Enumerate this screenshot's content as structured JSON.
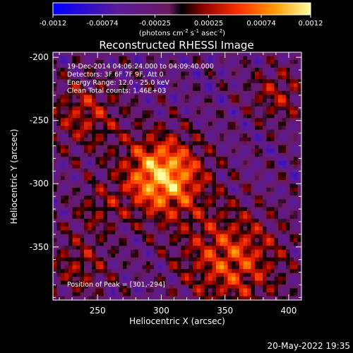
{
  "colorbar": {
    "tick_labels": [
      "-0.0012",
      "-0.00074",
      "-0.00025",
      "0.00025",
      "0.00074",
      "0.0012"
    ],
    "unit_label": "(photons cm",
    "unit_parts": [
      "(photons cm",
      "-2",
      " s",
      "-1",
      " asec",
      "-2",
      ")"
    ]
  },
  "chart_data": {
    "type": "heatmap",
    "title": "Reconstructed RHESSI Image",
    "xlabel": "Heliocentric X (arcsec)",
    "ylabel": "Heliocentric Y (arcsec)",
    "xlim": [
      215,
      410
    ],
    "ylim": [
      -392,
      -196
    ],
    "x_ticks": [
      250,
      300,
      350,
      400
    ],
    "y_ticks": [
      -200,
      -250,
      -300,
      -350
    ],
    "colorbar_range": [
      -0.0012,
      0.0012
    ],
    "annotations": [
      "19-Dec-2014 04:06:24.000 to 04:09:40.000",
      "Detectors: 3F 6F 7F 9F, Att 0",
      "Energy Range: 12.0 - 25.0 keV",
      "Clean     Total counts: 1.46E+03"
    ],
    "peak_label": "Position of Peak = [301,-294]",
    "peak": {
      "x": 301,
      "y": -294
    },
    "sources": [
      {
        "x": 301,
        "y": -294,
        "amp": 1.0,
        "sigma": 22
      },
      {
        "x": 355,
        "y": -360,
        "amp": 0.62,
        "sigma": 28
      },
      {
        "x": 240,
        "y": -245,
        "amp": 0.45,
        "sigma": 20
      },
      {
        "x": 235,
        "y": -365,
        "amp": 0.35,
        "sigma": 18
      },
      {
        "x": 390,
        "y": -230,
        "amp": 0.38,
        "sigma": 16
      },
      {
        "x": 250,
        "y": -320,
        "amp": 0.28,
        "sigma": 14
      }
    ]
  },
  "footer": {
    "timestamp": "20-May-2022 19:35"
  }
}
